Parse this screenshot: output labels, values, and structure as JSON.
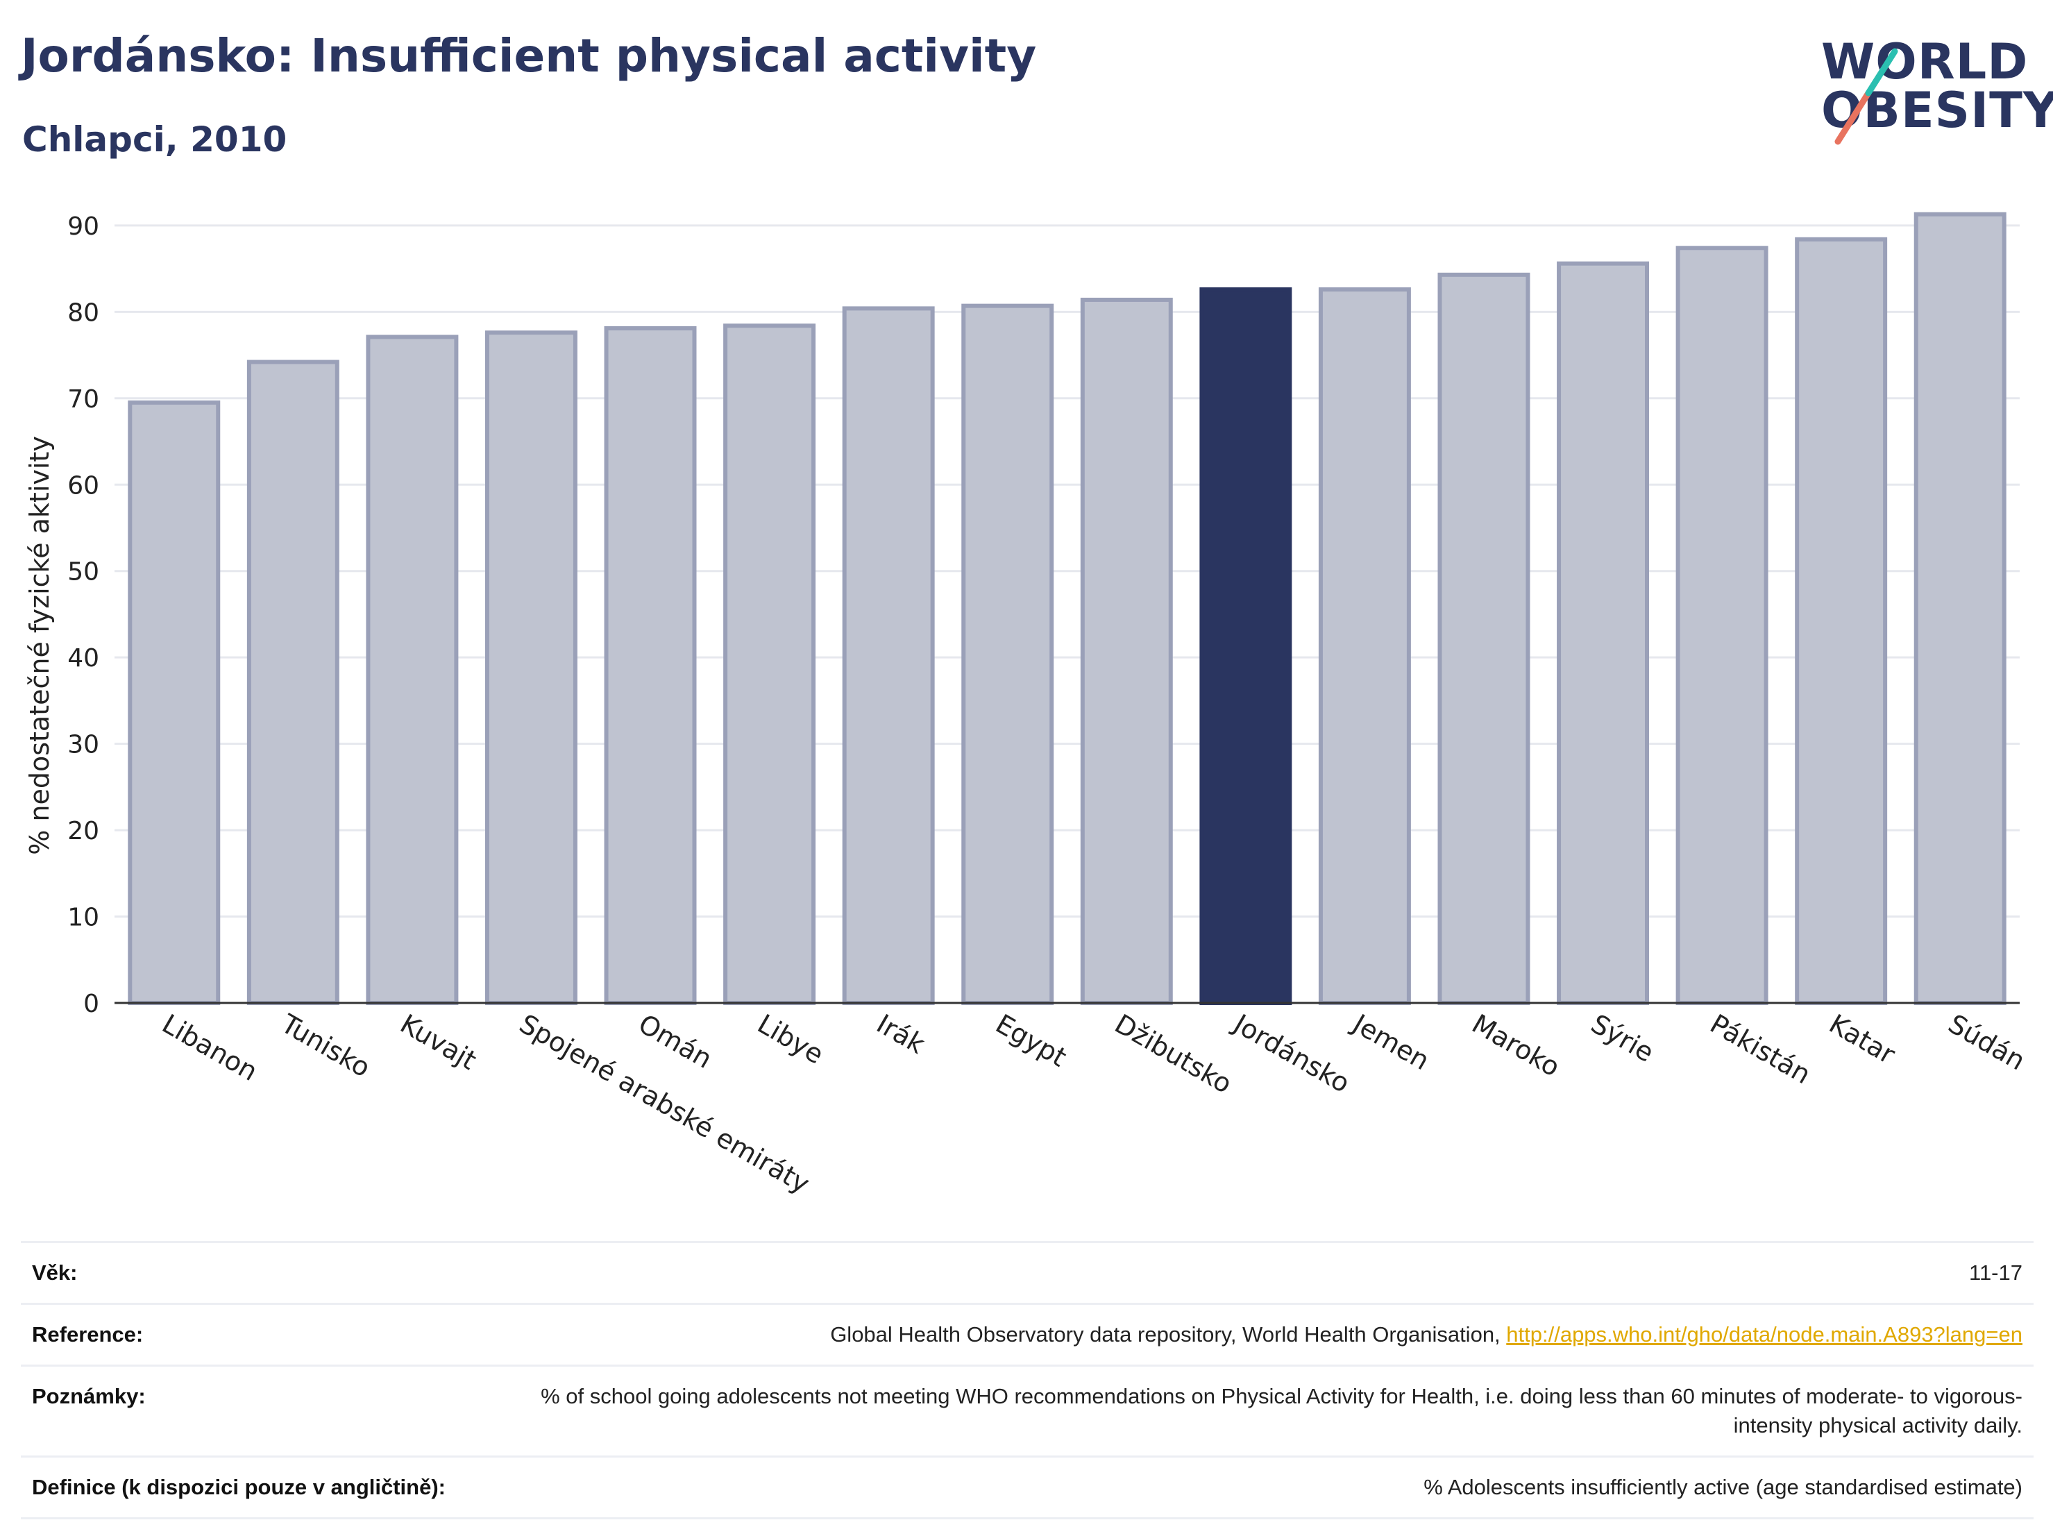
{
  "header": {
    "title": "Jordánsko: Insufficient physical activity",
    "subtitle": "Chlapci, 2010"
  },
  "logo": {
    "line1": "WORLD",
    "line2": "OBESITY"
  },
  "colors": {
    "highlight": "#2a3560",
    "bar_fill": "#bfc3d0",
    "bar_stroke": "#9aa0b8",
    "title": "#2a3560",
    "link": "#e0a800",
    "logo_teal": "#2bbfb0",
    "logo_coral": "#e8735f"
  },
  "chart_data": {
    "type": "bar",
    "title": "",
    "xlabel": "",
    "ylabel": "% nedostatečné fyzické aktivity",
    "ylim": [
      0,
      92
    ],
    "yticks": [
      0,
      10,
      20,
      30,
      40,
      50,
      60,
      70,
      80,
      90
    ],
    "grid": true,
    "highlight": "Jordánsko",
    "categories": [
      "Libanon",
      "Tunisko",
      "Kuvajt",
      "Spojené arabské emiráty",
      "Omán",
      "Libye",
      "Irák",
      "Egypt",
      "Džibutsko",
      "Jordánsko",
      "Jemen",
      "Maroko",
      "Sýrie",
      "Pákistán",
      "Katar",
      "Súdán"
    ],
    "values": [
      69.5,
      74.2,
      77.1,
      77.6,
      78.1,
      78.4,
      80.4,
      80.7,
      81.4,
      82.6,
      82.6,
      84.3,
      85.6,
      87.4,
      88.4,
      91.3
    ]
  },
  "info": {
    "rows": [
      {
        "label": "Věk:",
        "value": "11-17"
      },
      {
        "label": "Reference:",
        "value": "Global Health Observatory data repository, World Health Organisation, ",
        "link": "http://apps.who.int/gho/data/node.main.A893?lang=en"
      },
      {
        "label": "Poznámky:",
        "value": "% of school going adolescents not meeting WHO recommendations on Physical Activity for Health, i.e. doing less than 60 minutes of moderate- to vigorous-intensity physical activity daily."
      },
      {
        "label": "Definice (k dispozici pouze v angličtině):",
        "value": "% Adolescents insufficiently active (age standardised estimate)"
      }
    ]
  }
}
